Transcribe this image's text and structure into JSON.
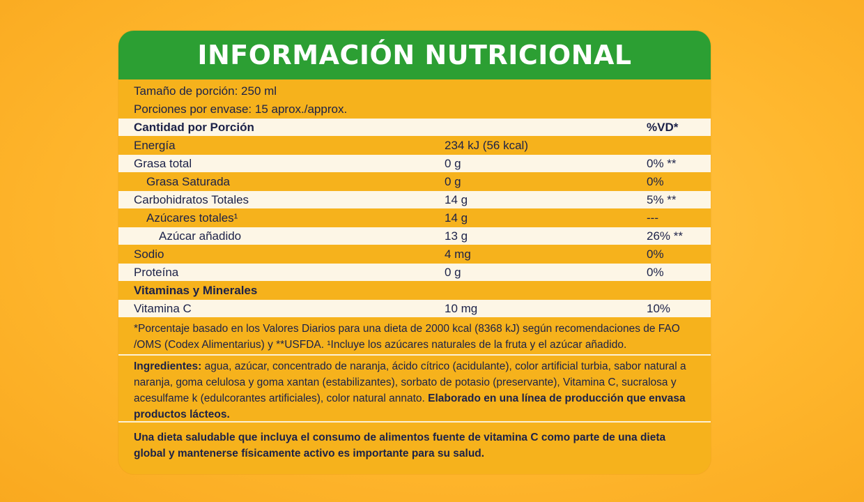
{
  "title": "INFORMACIÓN NUTRICIONAL",
  "serving": {
    "size": "Tamaño de porción: 250 ml",
    "per_container": "Porciones por envase: 15 aprox./approx."
  },
  "table": {
    "header": {
      "label": "Cantidad por Porción",
      "dv": "%VD*"
    },
    "rows": [
      {
        "label": "Energía",
        "amount": "234 kJ (56 kcal)",
        "dv": ""
      },
      {
        "label": "Grasa total",
        "amount": "0 g",
        "dv": "0% **"
      },
      {
        "label": "Grasa Saturada",
        "amount": "0 g",
        "dv": "0%"
      },
      {
        "label": "Carbohidratos Totales",
        "amount": "14 g",
        "dv": "5% **"
      },
      {
        "label": "Azúcares totales¹",
        "amount": "14 g",
        "dv": "---"
      },
      {
        "label": "Azúcar añadido",
        "amount": "13 g",
        "dv": "26% **"
      },
      {
        "label": "Sodio",
        "amount": "4 mg",
        "dv": "0%"
      },
      {
        "label": "Proteína",
        "amount": "0 g",
        "dv": "0%"
      }
    ],
    "section": "Vitaminas y Minerales",
    "vitamin": {
      "label": "Vitamina C",
      "amount": "10 mg",
      "dv": "10%"
    }
  },
  "footnote": "*Porcentaje basado en los Valores Diarios para una dieta de 2000 kcal (8368 kJ) según recomendaciones de FAO /OMS (Codex Alimentarius) y **USFDA. ¹Incluye los azúcares naturales de la fruta y el azúcar añadido.",
  "ingredients": {
    "label": "Ingredientes:",
    "text": " agua, azúcar, concentrado de naranja, ácido cítrico (acidulante), color artificial turbia, sabor natural a naranja, goma celulosa y goma xantan (estabilizantes), sorbato de potasio (preservante), Vitamina C, sucralosa y acesulfame k (edulcorantes artificiales), color natural annato. ",
    "warning": "Elaborado en una línea de producción que envasa productos lácteos."
  },
  "health_message": "Una dieta saludable que incluya el consumo de alimentos fuente de vitamina C como parte de una dieta global y mantenerse físicamente activo es importante para su salud.",
  "colors": {
    "banner": "#2c9f33",
    "label_bg": "#f6b21c",
    "text": "#1b2148"
  }
}
